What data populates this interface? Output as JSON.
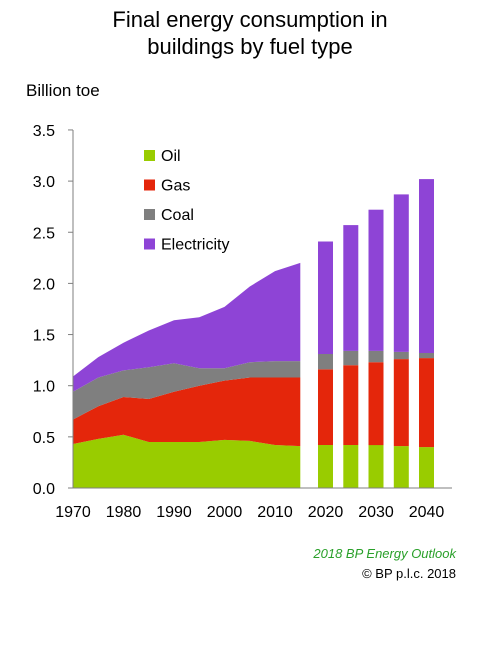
{
  "header": {
    "title_line1": "Final energy consumption in",
    "title_line2": "buildings by fuel type"
  },
  "footer": {
    "source": "2018 BP Energy Outlook",
    "copyright": "© BP p.l.c. 2018"
  },
  "chart_data": {
    "type": "area",
    "title": "Final energy consumption in buildings by fuel type",
    "ylabel": "Billion toe",
    "ylim": [
      0,
      3.5
    ],
    "yticks": [
      "0.0",
      "0.5",
      "1.0",
      "1.5",
      "2.0",
      "2.5",
      "3.0",
      "3.5"
    ],
    "xticks": [
      "1970",
      "1980",
      "1990",
      "2000",
      "2010",
      "2020",
      "2030",
      "2040"
    ],
    "grid": false,
    "legend_position": "top-left",
    "stacked": true,
    "history": {
      "x": [
        1970,
        1975,
        1980,
        1985,
        1990,
        1995,
        2000,
        2005,
        2010,
        2015
      ],
      "series": [
        {
          "name": "Oil",
          "color": "#99cc00",
          "values": [
            0.43,
            0.48,
            0.52,
            0.45,
            0.45,
            0.45,
            0.47,
            0.46,
            0.42,
            0.41
          ]
        },
        {
          "name": "Gas",
          "color": "#e4260b",
          "values": [
            0.24,
            0.32,
            0.37,
            0.42,
            0.49,
            0.55,
            0.58,
            0.62,
            0.66,
            0.67
          ]
        },
        {
          "name": "Coal",
          "color": "#7f7f7f",
          "values": [
            0.27,
            0.28,
            0.26,
            0.31,
            0.28,
            0.17,
            0.12,
            0.15,
            0.16,
            0.16
          ]
        },
        {
          "name": "Electricity",
          "color": "#8e44d6",
          "values": [
            0.15,
            0.2,
            0.27,
            0.36,
            0.42,
            0.5,
            0.6,
            0.74,
            0.88,
            0.96
          ]
        }
      ]
    },
    "projection": {
      "x": [
        2020,
        2025,
        2030,
        2035,
        2040
      ],
      "series": [
        {
          "name": "Oil",
          "color": "#99cc00",
          "values": [
            0.42,
            0.42,
            0.42,
            0.41,
            0.4
          ]
        },
        {
          "name": "Gas",
          "color": "#e4260b",
          "values": [
            0.74,
            0.78,
            0.81,
            0.85,
            0.87
          ]
        },
        {
          "name": "Coal",
          "color": "#7f7f7f",
          "values": [
            0.15,
            0.14,
            0.11,
            0.07,
            0.05
          ]
        },
        {
          "name": "Electricity",
          "color": "#8e44d6",
          "values": [
            1.1,
            1.23,
            1.38,
            1.54,
            1.7
          ]
        }
      ]
    }
  }
}
